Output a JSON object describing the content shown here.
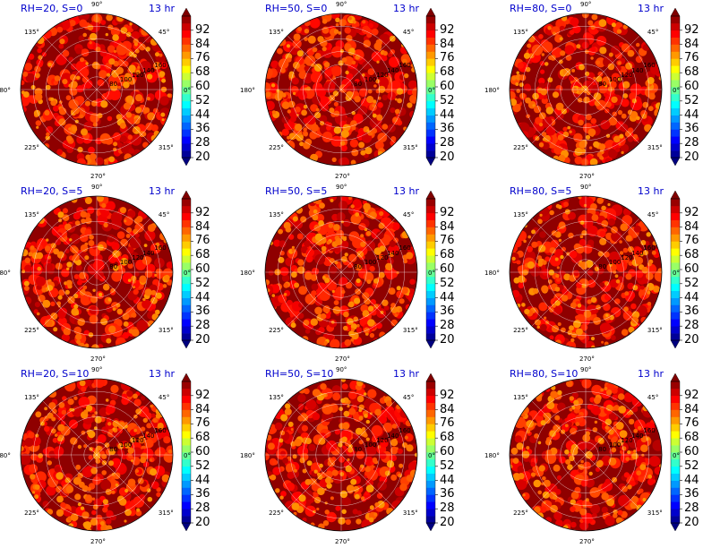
{
  "figure": {
    "panels": [
      {
        "title_left": "RH=20, S=0",
        "title_right": "13 hr",
        "rh": 20,
        "s": 0
      },
      {
        "title_left": "RH=50, S=0",
        "title_right": "13 hr",
        "rh": 50,
        "s": 0
      },
      {
        "title_left": "RH=80, S=0",
        "title_right": "13 hr",
        "rh": 80,
        "s": 0
      },
      {
        "title_left": "RH=20, S=5",
        "title_right": "13 hr",
        "rh": 20,
        "s": 5
      },
      {
        "title_left": "RH=50, S=5",
        "title_right": "13 hr",
        "rh": 50,
        "s": 5
      },
      {
        "title_left": "RH=80, S=5",
        "title_right": "13 hr",
        "rh": 80,
        "s": 5
      },
      {
        "title_left": "RH=20, S=10",
        "title_right": "13 hr",
        "rh": 20,
        "s": 10
      },
      {
        "title_left": "RH=50, S=10",
        "title_right": "13 hr",
        "rh": 50,
        "s": 10
      },
      {
        "title_left": "RH=80, S=10",
        "title_right": "13 hr",
        "rh": 80,
        "s": 10
      }
    ],
    "angle_labels": [
      "0°",
      "45°",
      "90°",
      "135°",
      "180°",
      "225°",
      "270°",
      "315°"
    ],
    "radial_labels": [
      "80",
      "100",
      "120",
      "140",
      "160"
    ],
    "colorbar_ticks": [
      "92",
      "84",
      "76",
      "68",
      "60",
      "52",
      "44",
      "36",
      "28",
      "20"
    ]
  },
  "chart_data": {
    "type": "heatmap",
    "projection": "polar",
    "layout": "3x3 grid",
    "colormap": "jet",
    "colorbar_range": [
      20,
      100
    ],
    "colorbar_ticks": [
      20,
      28,
      36,
      44,
      52,
      60,
      68,
      76,
      84,
      92
    ],
    "colorbar_extend": "both",
    "theta_ticks_deg": [
      0,
      45,
      90,
      135,
      180,
      225,
      270,
      315
    ],
    "r_ticks": [
      80,
      100,
      120,
      140,
      160
    ],
    "grid": true,
    "panels": [
      {
        "title": "RH=20, S=0",
        "time": "13 hr",
        "dominant_range": [
          76,
          100
        ]
      },
      {
        "title": "RH=50, S=0",
        "time": "13 hr",
        "dominant_range": [
          76,
          100
        ]
      },
      {
        "title": "RH=80, S=0",
        "time": "13 hr",
        "dominant_range": [
          60,
          100
        ]
      },
      {
        "title": "RH=20, S=5",
        "time": "13 hr",
        "dominant_range": [
          76,
          100
        ]
      },
      {
        "title": "RH=50, S=5",
        "time": "13 hr",
        "dominant_range": [
          76,
          100
        ]
      },
      {
        "title": "RH=80, S=5",
        "time": "13 hr",
        "dominant_range": [
          60,
          100
        ]
      },
      {
        "title": "RH=20, S=10",
        "time": "13 hr",
        "dominant_range": [
          76,
          100
        ]
      },
      {
        "title": "RH=50, S=10",
        "time": "13 hr",
        "dominant_range": [
          76,
          100
        ]
      },
      {
        "title": "RH=80, S=10",
        "time": "13 hr",
        "dominant_range": [
          60,
          100
        ]
      }
    ]
  }
}
